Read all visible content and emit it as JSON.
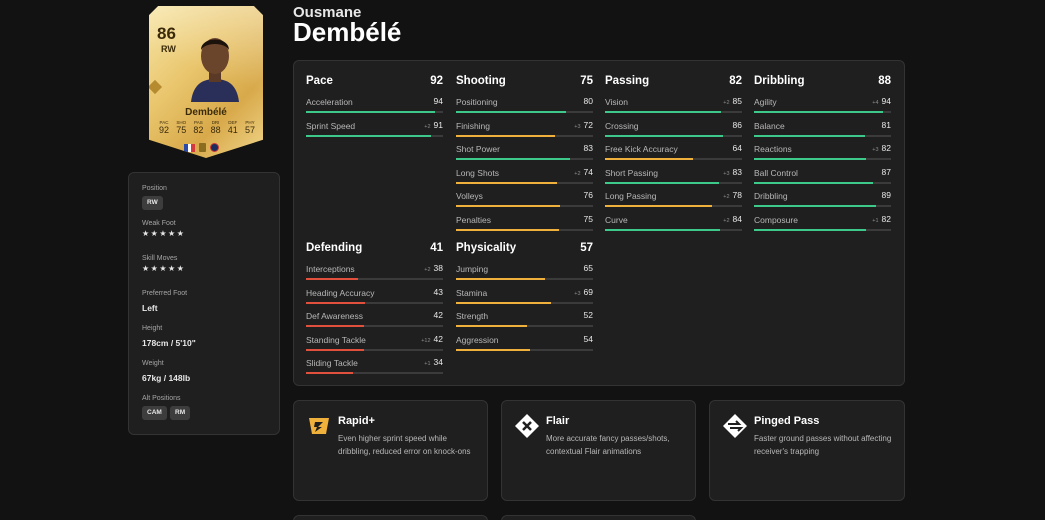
{
  "player": {
    "first_name": "Ousmane",
    "last_name": "Dembélé"
  },
  "card": {
    "rating": "86",
    "position": "RW",
    "name": "Dembélé",
    "stats": [
      {
        "label": "PAC",
        "value": "92"
      },
      {
        "label": "SHO",
        "value": "75"
      },
      {
        "label": "PAS",
        "value": "82"
      },
      {
        "label": "DRI",
        "value": "88"
      },
      {
        "label": "DEF",
        "value": "41"
      },
      {
        "label": "PHY",
        "value": "57"
      }
    ]
  },
  "info": {
    "position_label": "Position",
    "position_value": "RW",
    "weak_foot_label": "Weak Foot",
    "weak_foot_stars": "★★★★★",
    "weak_foot_rating": 5,
    "skill_moves_label": "Skill Moves",
    "skill_moves_stars": "★★★★★",
    "skill_moves_rating": 5,
    "preferred_foot_label": "Preferred Foot",
    "preferred_foot_value": "Left",
    "height_label": "Height",
    "height_value": "178cm / 5'10\"",
    "weight_label": "Weight",
    "weight_value": "67kg / 148lb",
    "alt_positions_label": "Alt Positions",
    "alt_positions": [
      "CAM",
      "RM"
    ]
  },
  "colors": {
    "high": "#3cc98a",
    "mid": "#f0b03c",
    "low": "#e0503c",
    "card_text": "#3a2a0a"
  },
  "categories": [
    {
      "name": "Pace",
      "value": "92",
      "attributes": [
        {
          "name": "Acceleration",
          "value": "94",
          "delta": ""
        },
        {
          "name": "Sprint Speed",
          "value": "91",
          "delta": "+2"
        }
      ]
    },
    {
      "name": "Shooting",
      "value": "75",
      "attributes": [
        {
          "name": "Positioning",
          "value": "80",
          "delta": ""
        },
        {
          "name": "Finishing",
          "value": "72",
          "delta": "+3"
        },
        {
          "name": "Shot Power",
          "value": "83",
          "delta": ""
        },
        {
          "name": "Long Shots",
          "value": "74",
          "delta": "+2"
        },
        {
          "name": "Volleys",
          "value": "76",
          "delta": ""
        },
        {
          "name": "Penalties",
          "value": "75",
          "delta": ""
        }
      ]
    },
    {
      "name": "Passing",
      "value": "82",
      "attributes": [
        {
          "name": "Vision",
          "value": "85",
          "delta": "+2"
        },
        {
          "name": "Crossing",
          "value": "86",
          "delta": ""
        },
        {
          "name": "Free Kick Accuracy",
          "value": "64",
          "delta": ""
        },
        {
          "name": "Short Passing",
          "value": "83",
          "delta": "+3"
        },
        {
          "name": "Long Passing",
          "value": "78",
          "delta": "+2"
        },
        {
          "name": "Curve",
          "value": "84",
          "delta": "+2"
        }
      ]
    },
    {
      "name": "Dribbling",
      "value": "88",
      "attributes": [
        {
          "name": "Agility",
          "value": "94",
          "delta": "+4"
        },
        {
          "name": "Balance",
          "value": "81",
          "delta": ""
        },
        {
          "name": "Reactions",
          "value": "82",
          "delta": "+3"
        },
        {
          "name": "Ball Control",
          "value": "87",
          "delta": ""
        },
        {
          "name": "Dribbling",
          "value": "89",
          "delta": ""
        },
        {
          "name": "Composure",
          "value": "82",
          "delta": "+1"
        }
      ]
    },
    {
      "name": "Defending",
      "value": "41",
      "attributes": [
        {
          "name": "Interceptions",
          "value": "38",
          "delta": "+2"
        },
        {
          "name": "Heading Accuracy",
          "value": "43",
          "delta": ""
        },
        {
          "name": "Def Awareness",
          "value": "42",
          "delta": ""
        },
        {
          "name": "Standing Tackle",
          "value": "42",
          "delta": "+12"
        },
        {
          "name": "Sliding Tackle",
          "value": "34",
          "delta": "+1"
        }
      ]
    },
    {
      "name": "Physicality",
      "value": "57",
      "attributes": [
        {
          "name": "Jumping",
          "value": "65",
          "delta": ""
        },
        {
          "name": "Stamina",
          "value": "69",
          "delta": "+3"
        },
        {
          "name": "Strength",
          "value": "52",
          "delta": ""
        },
        {
          "name": "Aggression",
          "value": "54",
          "delta": ""
        }
      ]
    }
  ],
  "playstyles": [
    {
      "icon": "rapid-plus-icon",
      "title": "Rapid+",
      "description": "Even higher sprint speed while dribbling, reduced error on knock-ons"
    },
    {
      "icon": "flair-icon",
      "title": "Flair",
      "description": "More accurate fancy passes/shots, contextual Flair animations"
    },
    {
      "icon": "pinged-pass-icon",
      "title": "Pinged Pass",
      "description": "Faster ground passes without affecting receiver's trapping"
    }
  ]
}
